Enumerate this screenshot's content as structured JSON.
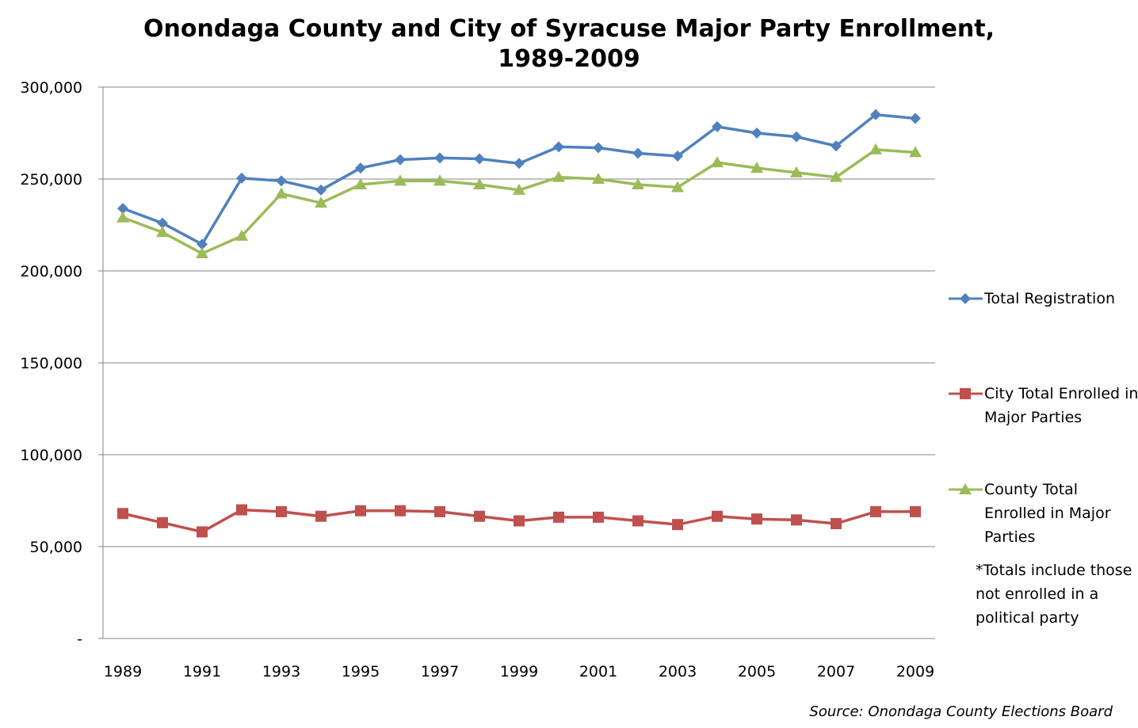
{
  "chart_data": {
    "type": "line",
    "title": "Onondaga County and City of Syracuse Major Party Enrollment,",
    "title_line2": "1989-2009",
    "xlabel": "",
    "ylabel": "",
    "x": [
      1989,
      1990,
      1991,
      1992,
      1993,
      1994,
      1995,
      1996,
      1997,
      1998,
      1999,
      2000,
      2001,
      2002,
      2003,
      2004,
      2005,
      2006,
      2007,
      2008,
      2009
    ],
    "x_tick_labels": [
      "1989",
      "1991",
      "1993",
      "1995",
      "1997",
      "1999",
      "2001",
      "2003",
      "2005",
      "2007",
      "2009"
    ],
    "ylim": [
      0,
      300000
    ],
    "y_tick_labels": [
      "-",
      "50,000",
      "100,000",
      "150,000",
      "200,000",
      "250,000",
      "300,000"
    ],
    "grid": true,
    "legend_position": "right",
    "series": [
      {
        "name": "Total Registration",
        "color": "#4F81BD",
        "marker": "diamond",
        "values": [
          234000,
          226000,
          214500,
          250500,
          249000,
          244000,
          256000,
          260500,
          261500,
          261000,
          258500,
          267500,
          267000,
          264000,
          262500,
          278500,
          275000,
          273000,
          268000,
          285000,
          283000
        ]
      },
      {
        "name": "City Total Enrolled in Major Parties",
        "color": "#C0504D",
        "marker": "square",
        "values": [
          68000,
          63000,
          58000,
          70000,
          69000,
          66500,
          69500,
          69500,
          69000,
          66500,
          64000,
          66000,
          66000,
          64000,
          62000,
          66500,
          65000,
          64500,
          62500,
          69000,
          69000
        ]
      },
      {
        "name": "County Total Enrolled in Major Parties",
        "color": "#9BBB59",
        "marker": "triangle",
        "values": [
          229000,
          221000,
          209500,
          219000,
          242000,
          237000,
          247000,
          249000,
          249000,
          247000,
          244000,
          251000,
          250000,
          247000,
          245500,
          259000,
          256000,
          253500,
          251000,
          266000,
          264500
        ]
      }
    ],
    "footnote": "*Totals include those not enrolled in a political party",
    "source": "Source: Onondaga County Elections Board"
  }
}
